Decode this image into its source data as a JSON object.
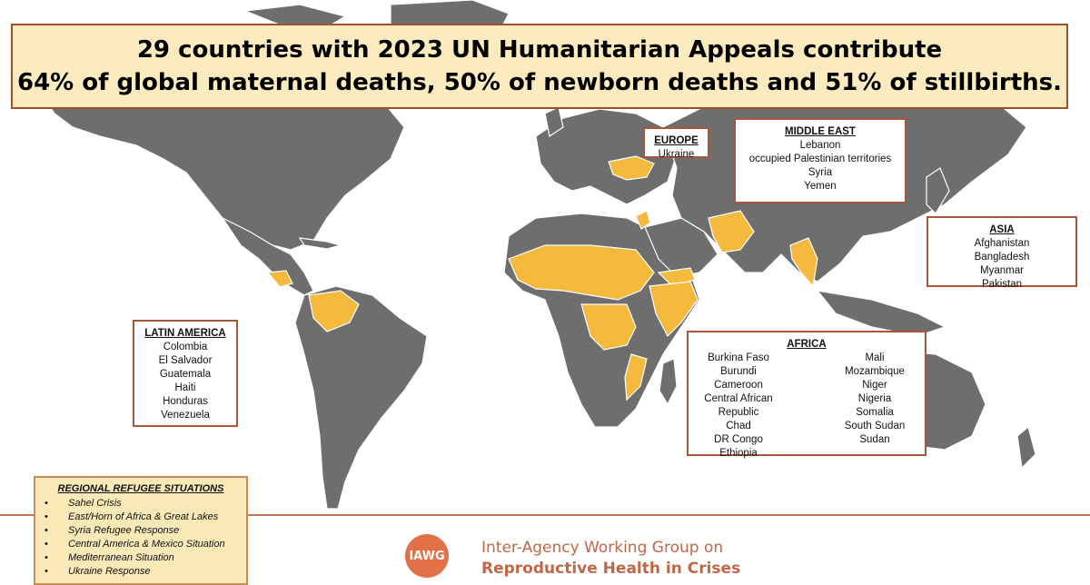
{
  "title": {
    "line1": "29 countries with 2023 UN Humanitarian Appeals contribute",
    "line2": "64% of global maternal deaths, 50% of newborn deaths and 51% of stillbirths."
  },
  "colors": {
    "land": "#6e6e6e",
    "highlight": "#f5b93d",
    "border": "#a8553a",
    "title_fill": "#fcebbe"
  },
  "regions": {
    "europe": {
      "title": "EUROPE",
      "countries": [
        "Ukraine"
      ]
    },
    "middle_east": {
      "title": "MIDDLE EAST",
      "countries": [
        "Lebanon",
        "occupied Palestinian territories",
        "Syria",
        "Yemen"
      ]
    },
    "asia": {
      "title": "ASIA",
      "countries": [
        "Afghanistan",
        "Bangladesh",
        "Myanmar",
        "Pakistan"
      ]
    },
    "latin_america": {
      "title": "LATIN AMERICA",
      "countries": [
        "Colombia",
        "El Salvador",
        "Guatemala",
        "Haiti",
        "Honduras",
        "Venezuela"
      ]
    },
    "africa": {
      "title": "AFRICA",
      "col1": [
        "Burkina Faso",
        "Burundi",
        "Cameroon",
        "Central African",
        "Republic",
        "Chad",
        "DR Congo",
        "Ethiopia"
      ],
      "col2": [
        "Mali",
        "Mozambique",
        "Niger",
        "Nigeria",
        "Somalia",
        "South Sudan",
        "Sudan"
      ]
    }
  },
  "refugee": {
    "title": "REGIONAL REFUGEE SITUATIONS",
    "items": [
      "Sahel Crisis",
      "East/Horn of Africa & Great Lakes",
      "Syria Refugee Response",
      "Central America & Mexico Situation",
      "Mediterranean Situation",
      "Ukraine Response"
    ]
  },
  "footer": {
    "logo_text": "IAWG",
    "org_line1": "Inter-Agency Working Group on",
    "org_line2": "Reproductive Health in Crises"
  }
}
